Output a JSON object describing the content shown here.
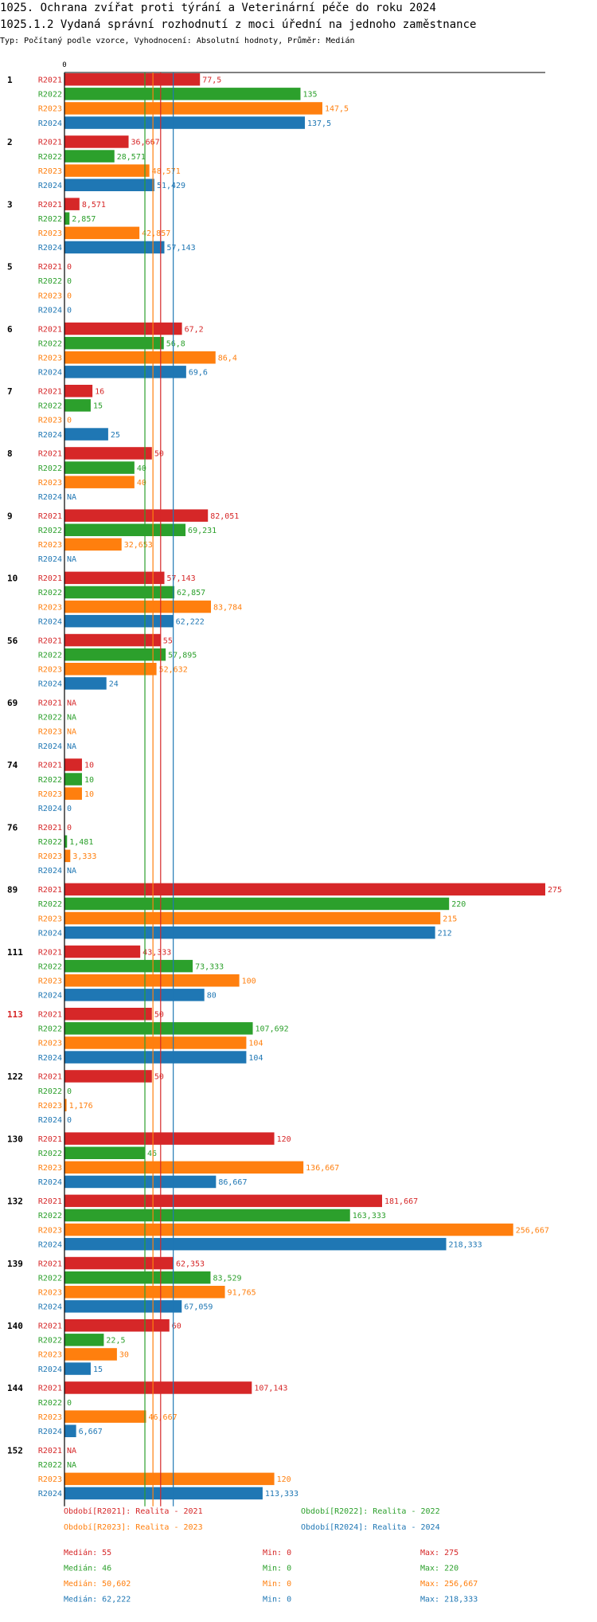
{
  "title": "1025. Ochrana zvířat proti týrání a Veterinární péče do roku 2024",
  "subtitle": "1025.1.2 Vydaná správní rozhodnutí z moci úřední na jednoho zaměstnance",
  "info": "Typ: Počítaný podle vzorce, Vyhodnocení: Absolutní hodnoty, Průměr: Medián",
  "chart_data": {
    "type": "bar",
    "orientation": "horizontal",
    "axis_zero_label": "0",
    "xlim": [
      0,
      275
    ],
    "series": [
      {
        "key": "R2021",
        "name": "Období[R2021]: Realita - 2021",
        "color": "#d62728"
      },
      {
        "key": "R2022",
        "name": "Období[R2022]: Realita - 2022",
        "color": "#2ca02c"
      },
      {
        "key": "R2023",
        "name": "Období[R2023]: Realita - 2023",
        "color": "#ff7f0e"
      },
      {
        "key": "R2024",
        "name": "Období[R2024]: Realita - 2024",
        "color": "#1f77b4"
      }
    ],
    "groups": [
      {
        "id": "1",
        "values": [
          "77,5",
          "135",
          "147,5",
          "137,5"
        ]
      },
      {
        "id": "2",
        "values": [
          "36,667",
          "28,571",
          "48,571",
          "51,429"
        ]
      },
      {
        "id": "3",
        "values": [
          "8,571",
          "2,857",
          "42,857",
          "57,143"
        ]
      },
      {
        "id": "5",
        "values": [
          "0",
          "0",
          "0",
          "0"
        ]
      },
      {
        "id": "6",
        "values": [
          "67,2",
          "56,8",
          "86,4",
          "69,6"
        ]
      },
      {
        "id": "7",
        "values": [
          "16",
          "15",
          "0",
          "25"
        ]
      },
      {
        "id": "8",
        "values": [
          "50",
          "40",
          "40",
          "NA"
        ]
      },
      {
        "id": "9",
        "values": [
          "82,051",
          "69,231",
          "32,653",
          "NA"
        ]
      },
      {
        "id": "10",
        "values": [
          "57,143",
          "62,857",
          "83,784",
          "62,222"
        ]
      },
      {
        "id": "56",
        "values": [
          "55",
          "57,895",
          "52,632",
          "24"
        ]
      },
      {
        "id": "69",
        "values": [
          "NA",
          "NA",
          "NA",
          "NA"
        ]
      },
      {
        "id": "74",
        "values": [
          "10",
          "10",
          "10",
          "0"
        ]
      },
      {
        "id": "76",
        "values": [
          "0",
          "1,481",
          "3,333",
          "NA"
        ]
      },
      {
        "id": "89",
        "values": [
          "275",
          "220",
          "215",
          "212"
        ]
      },
      {
        "id": "111",
        "values": [
          "43,333",
          "73,333",
          "100",
          "80"
        ]
      },
      {
        "id": "113",
        "values": [
          "50",
          "107,692",
          "104",
          "104"
        ],
        "highlight": true
      },
      {
        "id": "122",
        "values": [
          "50",
          "0",
          "1,176",
          "0"
        ]
      },
      {
        "id": "130",
        "values": [
          "120",
          "46",
          "136,667",
          "86,667"
        ]
      },
      {
        "id": "132",
        "values": [
          "181,667",
          "163,333",
          "256,667",
          "218,333"
        ]
      },
      {
        "id": "139",
        "values": [
          "62,353",
          "83,529",
          "91,765",
          "67,059"
        ]
      },
      {
        "id": "140",
        "values": [
          "60",
          "22,5",
          "30",
          "15"
        ]
      },
      {
        "id": "144",
        "values": [
          "107,143",
          "0",
          "46,667",
          "6,667"
        ]
      },
      {
        "id": "152",
        "values": [
          "NA",
          "NA",
          "120",
          "113,333"
        ]
      }
    ],
    "stats": [
      {
        "median": "55",
        "median_value": 55,
        "min": "0",
        "max": "275"
      },
      {
        "median": "46",
        "median_value": 46,
        "min": "0",
        "max": "220"
      },
      {
        "median": "50,602",
        "median_value": 50.602,
        "min": "0",
        "max": "256,667"
      },
      {
        "median": "62,222",
        "median_value": 62.222,
        "min": "0",
        "max": "218,333"
      }
    ],
    "labels": {
      "median": "Medián: ",
      "min": "Min: ",
      "max": "Max: "
    }
  }
}
